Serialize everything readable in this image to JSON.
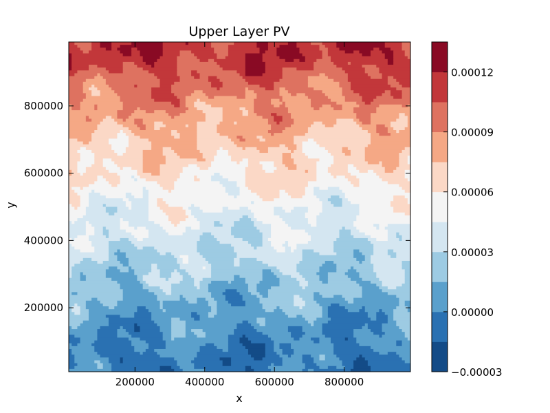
{
  "chart_data": {
    "type": "heatmap",
    "subtype": "filled-contour",
    "title": "Upper Layer PV",
    "xlabel": "x",
    "ylabel": "y",
    "xlim": [
      10000,
      990000
    ],
    "ylim": [
      10000,
      990000
    ],
    "x_ticks": [
      200000,
      400000,
      600000,
      800000
    ],
    "y_ticks": [
      200000,
      400000,
      600000,
      800000
    ],
    "x_tick_labels": [
      "200000",
      "400000",
      "600000",
      "800000"
    ],
    "y_tick_labels": [
      "200000",
      "400000",
      "600000",
      "800000"
    ],
    "colormap": "RdBu_r",
    "levels": [
      -3e-05,
      -1.5e-05,
      0.0,
      1.5e-05,
      3e-05,
      4.5e-05,
      6e-05,
      7.5e-05,
      9e-05,
      0.000105,
      0.00012,
      0.000135
    ],
    "level_colors": [
      "#134b87",
      "#2a71b2",
      "#5aa0cc",
      "#9dcbe3",
      "#d4e6f1",
      "#f4f4f4",
      "#fbd8c6",
      "#f5a885",
      "#de7260",
      "#c2373a",
      "#890a24"
    ],
    "colorbar_ticks": [
      -3e-05,
      0.0,
      3e-05,
      6e-05,
      9e-05,
      0.00012
    ],
    "colorbar_tick_labels": [
      "−0.00003",
      "0.00000",
      "0.00003",
      "0.00006",
      "0.00009",
      "0.00012"
    ],
    "field_description_trend": "PV increases roughly linearly with y: about -0.00001 near y=0 to about 0.00013 near y=990000, with turbulent eddy-scale fluctuations of roughly ±0.000015",
    "gradient_profile": [
      {
        "y": 50000,
        "value": -5e-06
      },
      {
        "y": 200000,
        "value": 1e-05
      },
      {
        "y": 350000,
        "value": 3e-05
      },
      {
        "y": 500000,
        "value": 4.8e-05
      },
      {
        "y": 650000,
        "value": 6.8e-05
      },
      {
        "y": 800000,
        "value": 8.8e-05
      },
      {
        "y": 950000,
        "value": 0.000115
      }
    ],
    "grid": false,
    "legend": "colorbar-right"
  }
}
